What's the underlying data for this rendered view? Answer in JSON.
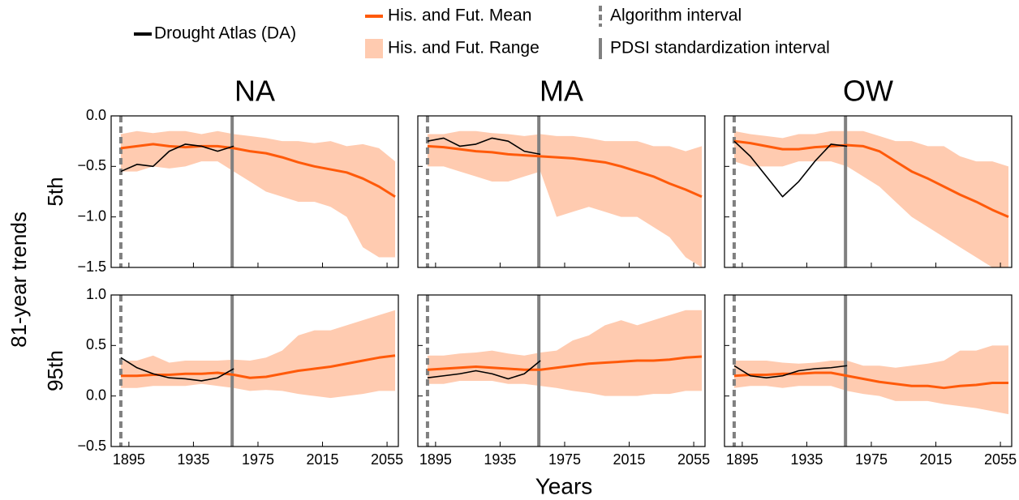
{
  "legend": [
    {
      "name": "Drought Atlas (DA)",
      "color": "#000000",
      "type": "line"
    },
    {
      "name": "His. and Fut. Mean",
      "color": "#ff5a0a",
      "type": "line"
    },
    {
      "name": "His. and Fut. Range",
      "color": "#ffcbb0",
      "type": "area"
    },
    {
      "name": "Algorithm interval",
      "color": "#808080",
      "type": "dashed"
    },
    {
      "name": "PDSI standardization interval",
      "color": "#808080",
      "type": "solid"
    }
  ],
  "ylabel": "81-year trends",
  "xlabel": "Years",
  "chart_data": [
    {
      "type": "line",
      "title": "NA",
      "row_label": "5th",
      "x": [
        1890,
        1900,
        1910,
        1920,
        1930,
        1940,
        1950,
        1960,
        1970,
        1980,
        1990,
        2000,
        2010,
        2020,
        2030,
        2040,
        2050,
        2060
      ],
      "xlim": [
        1884,
        2062
      ],
      "xticks": [
        1895,
        1935,
        1975,
        2015,
        2055
      ],
      "ylim": [
        -1.5,
        0
      ],
      "yticks": [
        {
          "value": -1.5,
          "label": "−1.5"
        },
        {
          "value": -1.0,
          "label": "−1.0"
        },
        {
          "value": -0.5,
          "label": "−0.5"
        },
        {
          "value": 0,
          "label": "0.0"
        }
      ],
      "vlines": [
        {
          "x": 1890,
          "style": "dashed",
          "color": "#808080"
        },
        {
          "x": 1959,
          "style": "solid",
          "color": "#808080"
        }
      ],
      "series": [
        {
          "type": "area",
          "color": "#ffcbb0",
          "lower": [
            -0.55,
            -0.55,
            -0.5,
            -0.52,
            -0.5,
            -0.45,
            -0.45,
            -0.55,
            -0.65,
            -0.75,
            -0.8,
            -0.85,
            -0.85,
            -0.9,
            -1.0,
            -1.3,
            -1.4,
            -1.4
          ],
          "upper": [
            -0.18,
            -0.15,
            -0.17,
            -0.15,
            -0.15,
            -0.18,
            -0.15,
            -0.18,
            -0.2,
            -0.22,
            -0.25,
            -0.25,
            -0.27,
            -0.25,
            -0.3,
            -0.28,
            -0.32,
            -0.45
          ]
        },
        {
          "type": "line",
          "color": "#ff5a0a",
          "width": 3,
          "values": [
            -0.32,
            -0.3,
            -0.28,
            -0.3,
            -0.31,
            -0.3,
            -0.3,
            -0.32,
            -0.35,
            -0.37,
            -0.41,
            -0.46,
            -0.5,
            -0.53,
            -0.56,
            -0.62,
            -0.7,
            -0.8
          ]
        },
        {
          "type": "line",
          "color": "#000000",
          "width": 1.6,
          "values": [
            -0.55,
            -0.48,
            -0.5,
            -0.35,
            -0.28,
            -0.3,
            -0.35,
            -0.3,
            null,
            null,
            null,
            null,
            null,
            null,
            null,
            null,
            null,
            null
          ]
        }
      ]
    },
    {
      "type": "line",
      "title": "MA",
      "x": [
        1890,
        1900,
        1910,
        1920,
        1930,
        1940,
        1950,
        1960,
        1970,
        1980,
        1990,
        2000,
        2010,
        2020,
        2030,
        2040,
        2050,
        2060
      ],
      "xlim": [
        1884,
        2062
      ],
      "xticks": [
        1895,
        1935,
        1975,
        2015,
        2055
      ],
      "ylim": [
        -1.5,
        0
      ],
      "yticks": [
        -1.5,
        -1.0,
        -0.5,
        0
      ],
      "vlines": [
        {
          "x": 1890,
          "style": "dashed",
          "color": "#808080"
        },
        {
          "x": 1959,
          "style": "solid",
          "color": "#808080"
        }
      ],
      "series": [
        {
          "type": "area",
          "color": "#ffcbb0",
          "lower": [
            -0.5,
            -0.5,
            -0.55,
            -0.6,
            -0.65,
            -0.65,
            -0.6,
            -0.55,
            -1.0,
            -0.95,
            -0.9,
            -0.95,
            -1.0,
            -1.0,
            -1.1,
            -1.2,
            -1.4,
            -1.5
          ],
          "upper": [
            -0.18,
            -0.18,
            -0.15,
            -0.15,
            -0.17,
            -0.18,
            -0.2,
            -0.18,
            -0.2,
            -0.2,
            -0.22,
            -0.25,
            -0.25,
            -0.25,
            -0.3,
            -0.3,
            -0.35,
            -0.3
          ]
        },
        {
          "type": "line",
          "color": "#ff5a0a",
          "width": 3,
          "values": [
            -0.3,
            -0.31,
            -0.33,
            -0.35,
            -0.36,
            -0.38,
            -0.39,
            -0.4,
            -0.41,
            -0.42,
            -0.44,
            -0.46,
            -0.5,
            -0.55,
            -0.6,
            -0.67,
            -0.73,
            -0.8
          ]
        },
        {
          "type": "line",
          "color": "#000000",
          "width": 1.6,
          "values": [
            -0.25,
            -0.22,
            -0.3,
            -0.28,
            -0.22,
            -0.25,
            -0.35,
            -0.38,
            null,
            null,
            null,
            null,
            null,
            null,
            null,
            null,
            null,
            null
          ]
        }
      ]
    },
    {
      "type": "line",
      "title": "OW",
      "x": [
        1890,
        1900,
        1910,
        1920,
        1930,
        1940,
        1950,
        1960,
        1970,
        1980,
        1990,
        2000,
        2010,
        2020,
        2030,
        2040,
        2050,
        2060
      ],
      "xlim": [
        1884,
        2062
      ],
      "xticks": [
        1895,
        1935,
        1975,
        2015,
        2055
      ],
      "ylim": [
        -1.5,
        0
      ],
      "yticks": [
        -1.5,
        -1.0,
        -0.5,
        0
      ],
      "vlines": [
        {
          "x": 1890,
          "style": "dashed",
          "color": "#808080"
        },
        {
          "x": 1959,
          "style": "solid",
          "color": "#808080"
        }
      ],
      "series": [
        {
          "type": "area",
          "color": "#ffcbb0",
          "lower": [
            -0.45,
            -0.5,
            -0.5,
            -0.5,
            -0.45,
            -0.45,
            -0.45,
            -0.5,
            -0.6,
            -0.7,
            -0.85,
            -1.0,
            -1.1,
            -1.2,
            -1.3,
            -1.4,
            -1.5,
            -1.5
          ],
          "upper": [
            -0.15,
            -0.18,
            -0.2,
            -0.22,
            -0.18,
            -0.18,
            -0.15,
            -0.15,
            -0.15,
            -0.2,
            -0.25,
            -0.25,
            -0.3,
            -0.3,
            -0.4,
            -0.45,
            -0.45,
            -0.5
          ]
        },
        {
          "type": "line",
          "color": "#ff5a0a",
          "width": 3,
          "values": [
            -0.25,
            -0.27,
            -0.3,
            -0.33,
            -0.33,
            -0.31,
            -0.3,
            -0.29,
            -0.3,
            -0.35,
            -0.45,
            -0.55,
            -0.62,
            -0.7,
            -0.78,
            -0.85,
            -0.93,
            -1.0
          ]
        },
        {
          "type": "line",
          "color": "#000000",
          "width": 1.6,
          "values": [
            -0.25,
            -0.4,
            -0.6,
            -0.8,
            -0.65,
            -0.45,
            -0.28,
            -0.3,
            null,
            null,
            null,
            null,
            null,
            null,
            null,
            null,
            null,
            null
          ]
        }
      ]
    },
    {
      "type": "line",
      "row_label": "95th",
      "x": [
        1890,
        1900,
        1910,
        1920,
        1930,
        1940,
        1950,
        1960,
        1970,
        1980,
        1990,
        2000,
        2010,
        2020,
        2030,
        2040,
        2050,
        2060
      ],
      "xlim": [
        1884,
        2062
      ],
      "xticks": [
        1895,
        1935,
        1975,
        2015,
        2055
      ],
      "ylim": [
        -0.5,
        1.0
      ],
      "yticks": [
        {
          "value": -0.5,
          "label": "−0.5"
        },
        {
          "value": 0,
          "label": "0.0"
        },
        {
          "value": 0.5,
          "label": "0.5"
        },
        {
          "value": 1.0,
          "label": "1.0"
        }
      ],
      "vlines": [
        {
          "x": 1890,
          "style": "dashed",
          "color": "#808080"
        },
        {
          "x": 1959,
          "style": "solid",
          "color": "#808080"
        }
      ],
      "series": [
        {
          "type": "area",
          "color": "#ffcbb0",
          "lower": [
            0.08,
            0.08,
            0.1,
            0.1,
            0.1,
            0.12,
            0.1,
            0.08,
            0.05,
            0.06,
            0.05,
            0.02,
            0,
            -0.02,
            0,
            0.02,
            0.05,
            0.05
          ],
          "upper": [
            0.35,
            0.35,
            0.4,
            0.33,
            0.35,
            0.35,
            0.35,
            0.36,
            0.35,
            0.38,
            0.45,
            0.6,
            0.65,
            0.65,
            0.7,
            0.75,
            0.8,
            0.85
          ]
        },
        {
          "type": "line",
          "color": "#ff5a0a",
          "width": 3,
          "values": [
            0.2,
            0.2,
            0.21,
            0.21,
            0.22,
            0.22,
            0.23,
            0.21,
            0.18,
            0.19,
            0.22,
            0.25,
            0.27,
            0.29,
            0.32,
            0.35,
            0.38,
            0.4
          ]
        },
        {
          "type": "line",
          "color": "#000000",
          "width": 1.6,
          "values": [
            0.38,
            0.28,
            0.22,
            0.18,
            0.17,
            0.15,
            0.18,
            0.27,
            null,
            null,
            null,
            null,
            null,
            null,
            null,
            null,
            null,
            null
          ]
        }
      ]
    },
    {
      "type": "line",
      "x": [
        1890,
        1900,
        1910,
        1920,
        1930,
        1940,
        1950,
        1960,
        1970,
        1980,
        1990,
        2000,
        2010,
        2020,
        2030,
        2040,
        2050,
        2060
      ],
      "xlim": [
        1884,
        2062
      ],
      "xticks": [
        1895,
        1935,
        1975,
        2015,
        2055
      ],
      "ylim": [
        -0.5,
        1.0
      ],
      "yticks": [
        -0.5,
        0,
        0.5,
        1.0
      ],
      "vlines": [
        {
          "x": 1890,
          "style": "dashed",
          "color": "#808080"
        },
        {
          "x": 1959,
          "style": "solid",
          "color": "#808080"
        }
      ],
      "series": [
        {
          "type": "area",
          "color": "#ffcbb0",
          "lower": [
            0.12,
            0.12,
            0.15,
            0.15,
            0.15,
            0.12,
            0.12,
            0.1,
            0.08,
            0.05,
            0.03,
            0,
            0,
            0,
            0.02,
            0.02,
            0.05,
            0.05
          ],
          "upper": [
            0.4,
            0.4,
            0.42,
            0.43,
            0.45,
            0.42,
            0.4,
            0.43,
            0.45,
            0.55,
            0.6,
            0.7,
            0.75,
            0.7,
            0.75,
            0.8,
            0.85,
            0.85
          ]
        },
        {
          "type": "line",
          "color": "#ff5a0a",
          "width": 3,
          "values": [
            0.26,
            0.27,
            0.28,
            0.29,
            0.28,
            0.27,
            0.26,
            0.26,
            0.28,
            0.3,
            0.32,
            0.33,
            0.34,
            0.35,
            0.35,
            0.36,
            0.38,
            0.39
          ]
        },
        {
          "type": "line",
          "color": "#000000",
          "width": 1.6,
          "values": [
            0.18,
            0.2,
            0.22,
            0.25,
            0.22,
            0.17,
            0.22,
            0.35,
            null,
            null,
            null,
            null,
            null,
            null,
            null,
            null,
            null,
            null
          ]
        }
      ]
    },
    {
      "type": "line",
      "x": [
        1890,
        1900,
        1910,
        1920,
        1930,
        1940,
        1950,
        1960,
        1970,
        1980,
        1990,
        2000,
        2010,
        2020,
        2030,
        2040,
        2050,
        2060
      ],
      "xlim": [
        1884,
        2062
      ],
      "xticks": [
        1895,
        1935,
        1975,
        2015,
        2055
      ],
      "ylim": [
        -0.5,
        1.0
      ],
      "yticks": [
        -0.5,
        0,
        0.5,
        1.0
      ],
      "vlines": [
        {
          "x": 1890,
          "style": "dashed",
          "color": "#808080"
        },
        {
          "x": 1959,
          "style": "solid",
          "color": "#808080"
        }
      ],
      "series": [
        {
          "type": "area",
          "color": "#ffcbb0",
          "lower": [
            0.08,
            0.1,
            0.1,
            0.08,
            0.1,
            0.1,
            0.1,
            0.05,
            0.02,
            0,
            -0.05,
            -0.05,
            -0.05,
            -0.08,
            -0.1,
            -0.12,
            -0.15,
            -0.18
          ],
          "upper": [
            0.35,
            0.35,
            0.35,
            0.33,
            0.32,
            0.33,
            0.35,
            0.35,
            0.3,
            0.3,
            0.28,
            0.3,
            0.32,
            0.35,
            0.45,
            0.45,
            0.5,
            0.5
          ]
        },
        {
          "type": "line",
          "color": "#ff5a0a",
          "width": 3,
          "values": [
            0.2,
            0.21,
            0.21,
            0.22,
            0.22,
            0.23,
            0.23,
            0.2,
            0.17,
            0.14,
            0.12,
            0.1,
            0.1,
            0.08,
            0.1,
            0.11,
            0.13,
            0.13
          ]
        },
        {
          "type": "line",
          "color": "#000000",
          "width": 1.6,
          "values": [
            0.3,
            0.2,
            0.18,
            0.2,
            0.25,
            0.27,
            0.28,
            0.3,
            null,
            null,
            null,
            null,
            null,
            null,
            null,
            null,
            null,
            null
          ]
        }
      ]
    }
  ]
}
